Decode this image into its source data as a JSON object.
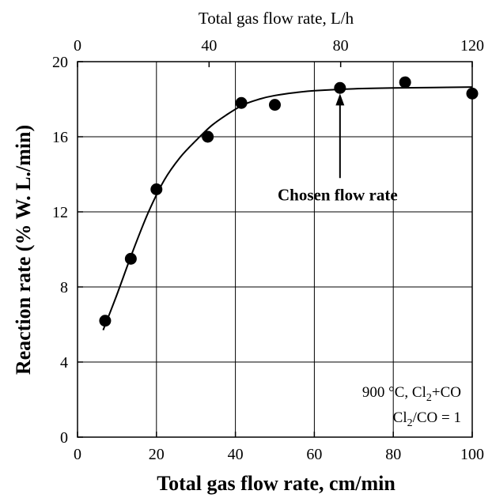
{
  "chart_data": {
    "type": "scatter",
    "title": "",
    "xlabel": "Total gas flow rate, cm/min",
    "x2label": "Total gas flow rate, L/h",
    "ylabel": "Reaction rate (% W. L./min)",
    "xlim": [
      0,
      100
    ],
    "x2lim": [
      0,
      120
    ],
    "ylim": [
      0,
      20
    ],
    "xticks": [
      "0",
      "20",
      "40",
      "60",
      "80",
      "100"
    ],
    "x2ticks": [
      "0",
      "40",
      "80",
      "120"
    ],
    "yticks": [
      "0",
      "4",
      "8",
      "12",
      "16",
      "20"
    ],
    "grid": true,
    "points": [
      {
        "x": 7,
        "y": 6.2
      },
      {
        "x": 13.5,
        "y": 9.5
      },
      {
        "x": 20,
        "y": 13.2
      },
      {
        "x": 33,
        "y": 16.0
      },
      {
        "x": 41.5,
        "y": 17.8
      },
      {
        "x": 50,
        "y": 17.7
      },
      {
        "x": 66.5,
        "y": 18.6
      },
      {
        "x": 83,
        "y": 18.9
      },
      {
        "x": 100,
        "y": 18.3
      }
    ],
    "fit_curve": [
      {
        "x": 6.5,
        "y": 5.7
      },
      {
        "x": 10,
        "y": 7.6
      },
      {
        "x": 14,
        "y": 9.9
      },
      {
        "x": 18,
        "y": 12.0
      },
      {
        "x": 22,
        "y": 13.7
      },
      {
        "x": 26,
        "y": 14.9
      },
      {
        "x": 30,
        "y": 15.8
      },
      {
        "x": 34,
        "y": 16.6
      },
      {
        "x": 38,
        "y": 17.2
      },
      {
        "x": 42,
        "y": 17.7
      },
      {
        "x": 46,
        "y": 18.0
      },
      {
        "x": 50,
        "y": 18.2
      },
      {
        "x": 55,
        "y": 18.35
      },
      {
        "x": 60,
        "y": 18.45
      },
      {
        "x": 70,
        "y": 18.55
      },
      {
        "x": 80,
        "y": 18.6
      },
      {
        "x": 90,
        "y": 18.62
      },
      {
        "x": 100,
        "y": 18.65
      }
    ],
    "annotation": {
      "text": "Chosen flow rate",
      "arrow_x": 66.5,
      "arrow_y_from": 13.8,
      "arrow_y_to": 18.3
    },
    "conditions": {
      "line1_prefix": "900 °C, Cl",
      "line1_sub": "2",
      "line1_suffix": "+CO",
      "line2_prefix": "Cl",
      "line2_sub": "2",
      "line2_suffix": "/CO = 1"
    }
  }
}
